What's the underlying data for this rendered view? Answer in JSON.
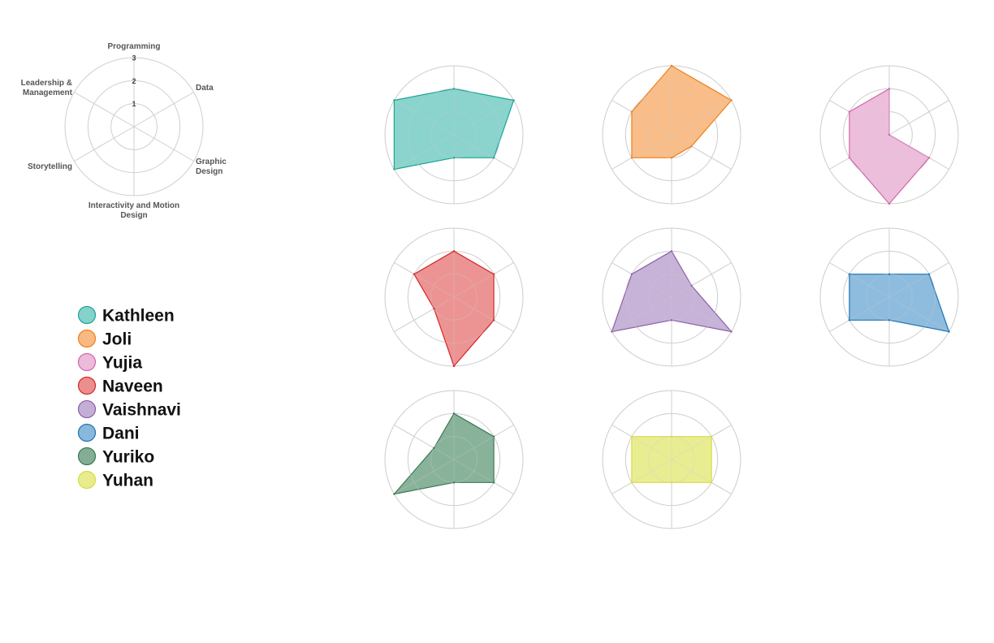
{
  "chart_data": {
    "type": "radar",
    "axes": [
      "Programming",
      "Data",
      "Graphic Design",
      "Interactivity and Motion Design",
      "Storytelling",
      "Leadership & Management"
    ],
    "axis_label_lines": [
      [
        "Programming"
      ],
      [
        "Data"
      ],
      [
        "Graphic",
        "Design"
      ],
      [
        "Interactivity and Motion",
        "Design"
      ],
      [
        "Storytelling"
      ],
      [
        "Leadership &",
        "Management"
      ]
    ],
    "rlim": [
      0,
      3
    ],
    "ticks": [
      1,
      2,
      3
    ],
    "series": [
      {
        "name": "Kathleen",
        "color": "#1aa596",
        "fill": "#84d2ca",
        "values": [
          2,
          3,
          2,
          1,
          3,
          3
        ]
      },
      {
        "name": "Joli",
        "color": "#f07f1d",
        "fill": "#f8b982",
        "values": [
          3,
          3,
          1,
          1,
          2,
          2
        ]
      },
      {
        "name": "Yujia",
        "color": "#d566aa",
        "fill": "#ebbbd9",
        "values": [
          2,
          0,
          2,
          3,
          2,
          2
        ]
      },
      {
        "name": "Naveen",
        "color": "#d62828",
        "fill": "#eb8e8e",
        "values": [
          2,
          2,
          2,
          3,
          1,
          2
        ]
      },
      {
        "name": "Vaishnavi",
        "color": "#8c61a9",
        "fill": "#c4aed6",
        "values": [
          2,
          1,
          3,
          1,
          3,
          2
        ]
      },
      {
        "name": "Dani",
        "color": "#1f74b1",
        "fill": "#88b8dc",
        "values": [
          1,
          2,
          3,
          1,
          2,
          2
        ]
      },
      {
        "name": "Yuriko",
        "color": "#3b7a55",
        "fill": "#83ae95",
        "values": [
          2,
          2,
          2,
          1,
          3,
          1
        ]
      },
      {
        "name": "Yuhan",
        "color": "#d9dc3e",
        "fill": "#e8ec8c",
        "values": [
          1,
          2,
          2,
          1,
          2,
          2
        ]
      }
    ],
    "grid": true,
    "legend_position": "left"
  }
}
